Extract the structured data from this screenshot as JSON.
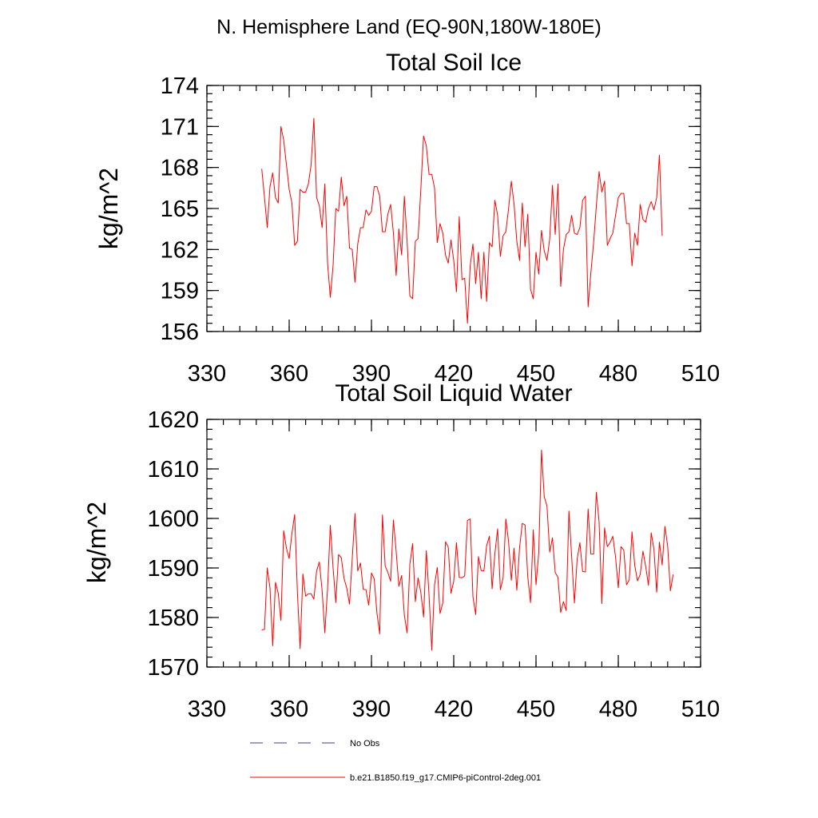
{
  "figure": {
    "suptitle": "N. Hemisphere Land (EQ-90N,180W-180E)"
  },
  "legend": {
    "items": [
      {
        "label": "No Obs",
        "color": "#3d3d99",
        "style": "dashed"
      },
      {
        "label": "b.e21.B1850.f19_g17.CMIP6-piControl-2deg.001",
        "color": "#ff0000",
        "style": "solid"
      }
    ]
  },
  "chart_data": [
    {
      "type": "line",
      "title": "Total Soil Ice",
      "xlabel": "",
      "ylabel": "kg/m^2",
      "xlim": [
        330,
        510
      ],
      "ylim": [
        156,
        174
      ],
      "xticks": [
        330,
        360,
        390,
        420,
        450,
        480,
        510
      ],
      "yticks": [
        156,
        159,
        162,
        165,
        168,
        171,
        174
      ],
      "series": [
        {
          "name": "b.e21.B1850.f19_g17.CMIP6-piControl-2deg.001",
          "color": "#ff0000",
          "x_start": 350,
          "x_step": 1,
          "values": [
            167.9,
            165.8,
            163.6,
            166.6,
            167.6,
            165.8,
            165.4,
            171.0,
            170.0,
            168.2,
            166.4,
            165.4,
            162.3,
            162.6,
            166.4,
            166.2,
            166.2,
            166.8,
            168.2,
            171.6,
            165.8,
            165.2,
            163.6,
            166.8,
            161.0,
            158.5,
            160.8,
            165.0,
            164.8,
            167.3,
            165.2,
            165.9,
            162.1,
            162.0,
            159.6,
            162.4,
            163.6,
            163.6,
            164.9,
            164.5,
            164.8,
            166.6,
            166.6,
            165.9,
            163.3,
            163.3,
            164.6,
            165.3,
            163.2,
            160.1,
            163.5,
            161.6,
            165.9,
            162.6,
            158.6,
            158.4,
            162.6,
            162.8,
            166.4,
            170.3,
            169.6,
            167.5,
            167.5,
            166.5,
            162.5,
            163.9,
            163.2,
            161.6,
            161.0,
            162.7,
            161.2,
            158.9,
            164.4,
            159.8,
            159.9,
            156.6,
            160.8,
            162.4,
            159.5,
            161.8,
            158.4,
            161.8,
            158.2,
            162.5,
            162.2,
            165.6,
            164.5,
            161.5,
            163.0,
            163.3,
            165.0,
            167.0,
            165.3,
            162.6,
            161.2,
            165.4,
            162.2,
            164.6,
            159.1,
            158.4,
            161.8,
            160.2,
            163.4,
            161.9,
            161.2,
            162.8,
            166.7,
            163.1,
            166.8,
            159.3,
            162.0,
            163.1,
            163.3,
            164.5,
            163.2,
            163.1,
            163.6,
            165.6,
            165.9,
            157.8,
            160.3,
            162.5,
            165.2,
            167.7,
            166.2,
            167.0,
            162.3,
            162.8,
            163.2,
            164.5,
            165.8,
            166.1,
            166.1,
            163.9,
            163.9,
            160.8,
            163.2,
            162.3,
            165.3,
            164.2,
            164.0,
            165.0,
            165.5,
            164.9,
            165.8,
            168.9,
            163.0
          ]
        }
      ]
    },
    {
      "type": "line",
      "title": "Total Soil Liquid Water",
      "xlabel": "",
      "ylabel": "kg/m^2",
      "xlim": [
        330,
        510
      ],
      "ylim": [
        1570,
        1620
      ],
      "xticks": [
        330,
        360,
        390,
        420,
        450,
        480,
        510
      ],
      "yticks": [
        1570,
        1580,
        1590,
        1600,
        1610,
        1620
      ],
      "series": [
        {
          "name": "b.e21.B1850.f19_g17.CMIP6-piControl-2deg.001",
          "color": "#ff0000",
          "x_start": 350,
          "x_step": 1,
          "values": [
            1577.5,
            1577.6,
            1590.0,
            1586.0,
            1574.3,
            1587.1,
            1584.9,
            1579.4,
            1597.5,
            1594.0,
            1591.9,
            1597.0,
            1600.8,
            1585.1,
            1573.7,
            1588.8,
            1584.3,
            1584.8,
            1584.8,
            1583.7,
            1589.4,
            1591.2,
            1585.5,
            1576.9,
            1585.9,
            1598.6,
            1590.1,
            1583.0,
            1592.7,
            1592.1,
            1587.9,
            1585.9,
            1582.7,
            1592.0,
            1601.0,
            1589.4,
            1591.0,
            1585.7,
            1585.6,
            1582.5,
            1589.0,
            1587.8,
            1580.9,
            1576.7,
            1600.7,
            1590.4,
            1589.1,
            1587.3,
            1599.7,
            1593.4,
            1586.3,
            1588.5,
            1580.4,
            1576.9,
            1590.8,
            1594.9,
            1583.2,
            1588.0,
            1585.1,
            1580.1,
            1593.5,
            1584.5,
            1573.4,
            1586.6,
            1590.1,
            1580.8,
            1582.9,
            1595.3,
            1594.2,
            1584.9,
            1587.3,
            1595.1,
            1588.1,
            1588.0,
            1588.4,
            1599.6,
            1599.9,
            1584.2,
            1580.6,
            1592.3,
            1589.5,
            1589.4,
            1594.5,
            1596.4,
            1585.8,
            1592.9,
            1597.9,
            1585.6,
            1588.0,
            1599.9,
            1595.3,
            1587.5,
            1594.0,
            1585.5,
            1594.1,
            1599.0,
            1598.7,
            1588.2,
            1583.0,
            1597.7,
            1586.6,
            1593.1,
            1613.8,
            1604.4,
            1602.5,
            1593.2,
            1596.1,
            1589.1,
            1588.1,
            1581.0,
            1583.2,
            1581.4,
            1601.5,
            1592.3,
            1582.9,
            1591.8,
            1595.1,
            1589.3,
            1589.2,
            1601.9,
            1592.8,
            1592.8,
            1605.3,
            1599.3,
            1582.8,
            1598.1,
            1594.3,
            1595.1,
            1596.4,
            1592.2,
            1586.0,
            1594.3,
            1593.6,
            1586.6,
            1587.6,
            1597.3,
            1590.5,
            1587.4,
            1588.7,
            1593.4,
            1590.3,
            1586.5,
            1597.1,
            1593.8,
            1585.1,
            1595.2,
            1590.6,
            1598.4,
            1594.4,
            1585.4,
            1588.7
          ]
        }
      ]
    }
  ]
}
